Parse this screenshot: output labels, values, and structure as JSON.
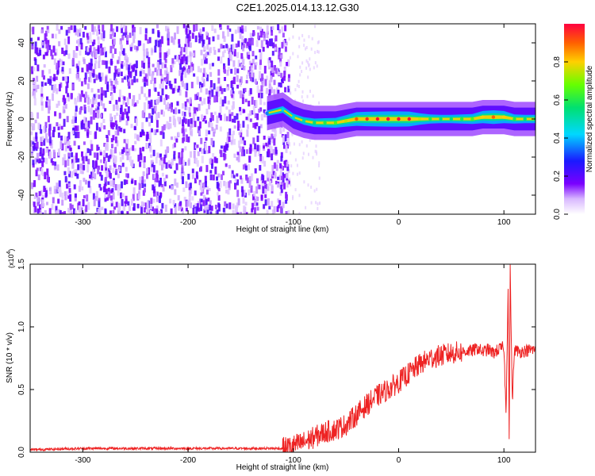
{
  "title": "C2E1.2025.014.13.12.G30",
  "chart_data": [
    {
      "type": "heatmap",
      "xlabel": "Height of straight line (km)",
      "ylabel": "Frequency (Hz)",
      "xlim": [
        -350,
        130
      ],
      "ylim": [
        -50,
        50
      ],
      "xticks": [
        -300,
        -200,
        -100,
        0,
        100
      ],
      "yticks": [
        -40,
        -20,
        0,
        20,
        40
      ],
      "noise_region_x": [
        -350,
        -105
      ],
      "ridge": {
        "x": [
          -125,
          -110,
          -100,
          -90,
          -80,
          -70,
          -60,
          -50,
          -40,
          -30,
          -20,
          -10,
          0,
          10,
          20,
          30,
          40,
          50,
          60,
          70,
          80,
          90,
          100,
          110,
          120,
          130
        ],
        "freq": [
          3,
          5,
          1,
          -1,
          -2,
          -2,
          -2,
          -1,
          0,
          0,
          0,
          0,
          0,
          0,
          0,
          0,
          0,
          0,
          0,
          0,
          1,
          1,
          1,
          0,
          0,
          0
        ],
        "amplitude": [
          0.35,
          0.45,
          0.45,
          0.5,
          0.55,
          0.6,
          0.65,
          0.75,
          0.9,
          0.95,
          0.98,
          1.0,
          1.0,
          0.98,
          0.75,
          0.6,
          0.55,
          0.55,
          0.6,
          0.65,
          0.8,
          0.9,
          0.8,
          0.6,
          0.55,
          0.55
        ]
      },
      "colorbar": {
        "label": "Normalized spectral amplitude",
        "ticks": [
          "0.0",
          "0.2",
          "0.4",
          "0.6",
          "0.8"
        ],
        "range": [
          0,
          1
        ]
      }
    },
    {
      "type": "line",
      "xlabel": "Height of straight line (km)",
      "ylabel": "SNR (10 * v/v)",
      "yscale_label": "(x10",
      "yscale_exp": "4",
      "yscale_suffix": ")",
      "xlim": [
        -350,
        130
      ],
      "ylim": [
        0,
        1.5
      ],
      "xticks": [
        -300,
        -200,
        -100,
        0,
        100
      ],
      "yticks": [
        "0.0",
        "0.5",
        "1.0",
        "1.5"
      ],
      "series": [
        {
          "color": "#ee2222",
          "x": [
            -350,
            -300,
            -250,
            -200,
            -150,
            -110,
            -100,
            -90,
            -80,
            -70,
            -60,
            -50,
            -40,
            -30,
            -20,
            -10,
            0,
            10,
            20,
            30,
            40,
            50,
            60,
            70,
            75,
            80,
            85,
            90,
            95,
            100,
            102,
            104,
            105,
            106,
            108,
            110,
            115,
            120,
            130
          ],
          "y": [
            0.02,
            0.03,
            0.03,
            0.03,
            0.03,
            0.03,
            0.05,
            0.08,
            0.12,
            0.16,
            0.18,
            0.22,
            0.3,
            0.38,
            0.45,
            0.5,
            0.56,
            0.63,
            0.7,
            0.75,
            0.77,
            0.79,
            0.8,
            0.81,
            0.83,
            0.8,
            0.82,
            0.79,
            0.82,
            0.84,
            0.3,
            1.35,
            0.08,
            1.45,
            0.4,
            0.82,
            0.8,
            0.81,
            0.82
          ]
        }
      ]
    }
  ]
}
